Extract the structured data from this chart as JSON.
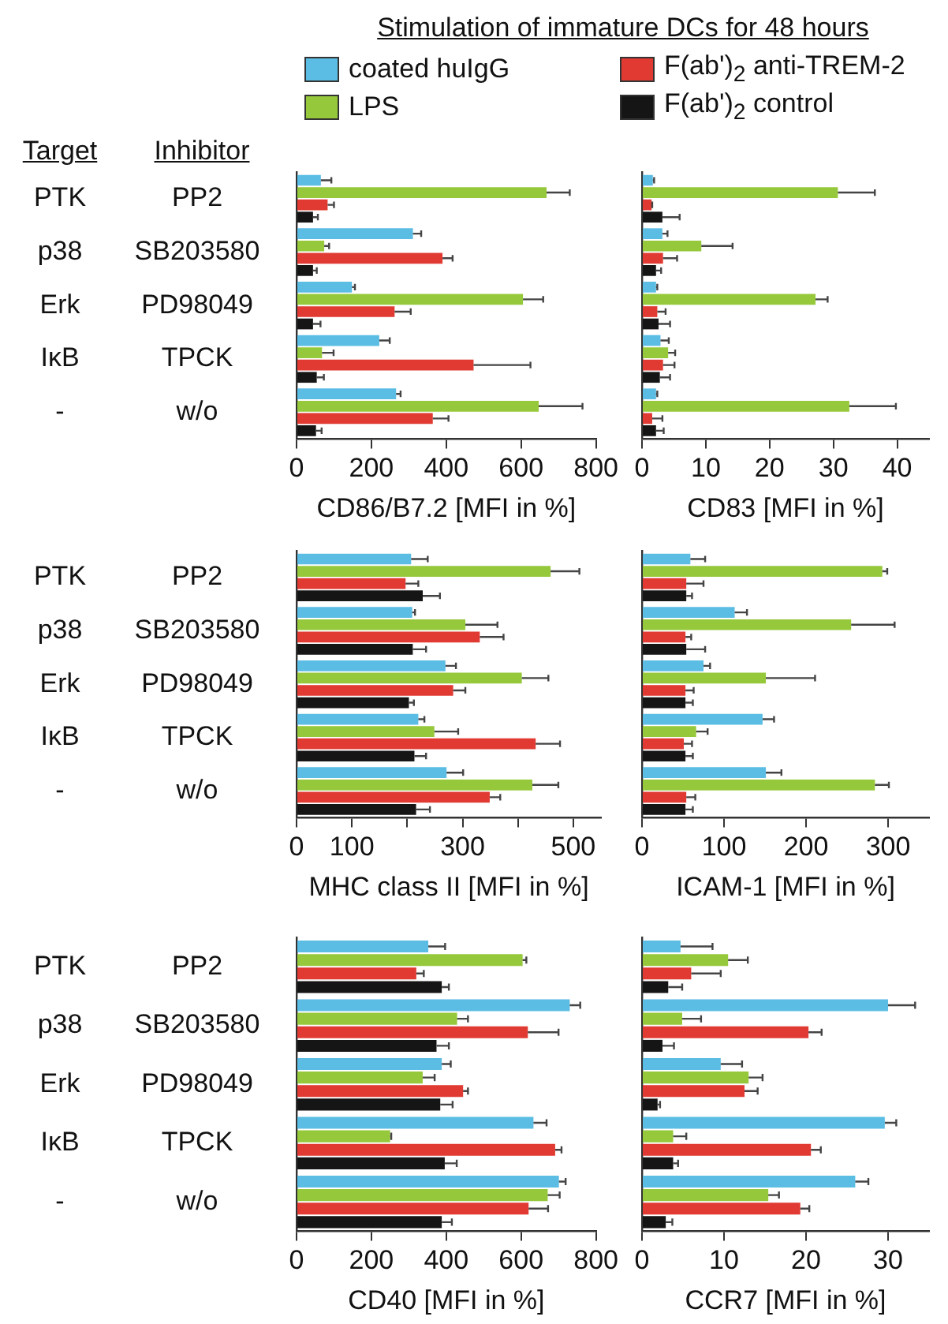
{
  "chart_data": [
    {
      "type": "bar",
      "orientation": "horizontal",
      "title": "Stimulation of immature DCs for 48 hours",
      "legend": "top",
      "annotations": [
        "Target",
        "Inhibitor"
      ],
      "categories": [
        "PP2",
        "SB203580",
        "PD98049",
        "TPCK",
        "w/o"
      ],
      "y2_categories": [
        "PTK",
        "p38",
        "Erk",
        "IκB",
        "-"
      ],
      "xlabel": "CD86/B7.2 [MFI in %]",
      "xlim": [
        0,
        800
      ],
      "xticks": [
        0,
        200,
        400,
        600,
        800
      ],
      "grid": false,
      "series": [
        {
          "name": "coated huIgG",
          "color": "#5bbde4",
          "values": [
            65,
            311,
            148,
            221,
            266
          ],
          "errors": [
            [
              65,
              93
            ],
            [
              311,
              333
            ],
            [
              148,
              156
            ],
            [
              221,
              249
            ],
            [
              266,
              278
            ]
          ]
        },
        {
          "name": "LPS",
          "color": "#95c83a",
          "values": [
            668,
            74,
            605,
            68,
            647
          ],
          "errors": [
            [
              668,
              730
            ],
            [
              74,
              87
            ],
            [
              605,
              659
            ],
            [
              68,
              99
            ],
            [
              647,
              764
            ]
          ]
        },
        {
          "name": "F(ab')$_{2}$ anti-TREM-2",
          "color": "#e03a32",
          "values": [
            83,
            390,
            262,
            473,
            364
          ],
          "errors": [
            [
              83,
              100
            ],
            [
              390,
              417
            ],
            [
              262,
              305
            ],
            [
              473,
              625
            ],
            [
              364,
              406
            ]
          ]
        },
        {
          "name": "F(ab')$_{2}$ control",
          "color": "#151515",
          "values": [
            44,
            44,
            44,
            54,
            52
          ],
          "errors": [
            [
              44,
              57
            ],
            [
              44,
              54
            ],
            [
              44,
              64
            ],
            [
              54,
              73
            ],
            [
              52,
              67
            ]
          ]
        }
      ]
    },
    {
      "type": "bar",
      "orientation": "horizontal",
      "categories": [
        null,
        null,
        null,
        null,
        null
      ],
      "xlabel": "CD83 [MFI in %]",
      "xlim": [
        0,
        45
      ],
      "xticks": [
        0,
        10,
        20,
        30,
        40
      ],
      "grid": false,
      "series": [
        {
          "color": "#5bbde4",
          "values": [
            1.7,
            3.2,
            2.2,
            2.9,
            2.2
          ],
          "errors": [
            [
              1.7,
              1.9
            ],
            [
              3.2,
              4.0
            ],
            [
              2.2,
              2.4
            ],
            [
              2.9,
              4.2
            ],
            [
              2.2,
              2.4
            ]
          ]
        },
        {
          "color": "#95c83a",
          "values": [
            30.7,
            9.3,
            27.2,
            4.1,
            32.5
          ],
          "errors": [
            [
              30.7,
              36.5
            ],
            [
              9.3,
              14.2
            ],
            [
              27.2,
              29.1
            ],
            [
              4.1,
              5.2
            ],
            [
              32.5,
              39.8
            ]
          ]
        },
        {
          "color": "#e03a32",
          "values": [
            1.5,
            3.3,
            2.4,
            3.3,
            1.6
          ],
          "errors": [
            [
              1.5,
              1.6
            ],
            [
              3.3,
              5.5
            ],
            [
              2.4,
              3.7
            ],
            [
              3.3,
              5.1
            ],
            [
              1.6,
              3.2
            ]
          ]
        },
        {
          "color": "#151515",
          "values": [
            3.2,
            2.2,
            2.6,
            2.8,
            2.2
          ],
          "errors": [
            [
              3.2,
              5.9
            ],
            [
              2.2,
              3.0
            ],
            [
              2.6,
              4.4
            ],
            [
              2.8,
              4.4
            ],
            [
              2.2,
              3.4
            ]
          ]
        }
      ]
    },
    {
      "type": "bar",
      "orientation": "horizontal",
      "categories": [
        "PP2",
        "SB203580",
        "PD98049",
        "TPCK",
        "w/o"
      ],
      "y2_categories": [
        "PTK",
        "p38",
        "Erk",
        "IκB",
        "-"
      ],
      "xlabel": "MHC class II [MFI in %]",
      "xlim": [
        0,
        550
      ],
      "xticks": [
        0,
        100,
        {
          "value": 200,
          "label": null
        },
        300,
        {
          "value": 400,
          "label": null
        },
        500
      ],
      "grid": false,
      "series": [
        {
          "color": "#5bbde4",
          "values": [
            207,
            209,
            269,
            220,
            271
          ],
          "errors": [
            [
              207,
              237
            ],
            [
              209,
              214
            ],
            [
              269,
              288
            ],
            [
              220,
              231
            ],
            [
              271,
              301
            ]
          ]
        },
        {
          "color": "#95c83a",
          "values": [
            459,
            305,
            407,
            249,
            426
          ],
          "errors": [
            [
              459,
              511
            ],
            [
              305,
              363
            ],
            [
              407,
              455
            ],
            [
              249,
              292
            ],
            [
              426,
              473
            ]
          ]
        },
        {
          "color": "#e03a32",
          "values": [
            197,
            331,
            283,
            432,
            349
          ],
          "errors": [
            [
              197,
              220
            ],
            [
              331,
              374
            ],
            [
              283,
              305
            ],
            [
              432,
              476
            ],
            [
              349,
              368
            ]
          ]
        },
        {
          "color": "#151515",
          "values": [
            228,
            210,
            203,
            213,
            216
          ],
          "errors": [
            [
              228,
              259
            ],
            [
              210,
              234
            ],
            [
              203,
              212
            ],
            [
              213,
              234
            ],
            [
              216,
              241
            ]
          ]
        }
      ]
    },
    {
      "type": "bar",
      "orientation": "horizontal",
      "categories": [
        null,
        null,
        null,
        null,
        null
      ],
      "xlabel": "ICAM-1 [MFI in %]",
      "xlim": [
        0,
        350
      ],
      "xticks": [
        0,
        100,
        200,
        300
      ],
      "grid": false,
      "series": [
        {
          "color": "#5bbde4",
          "values": [
            59,
            113,
            75,
            147,
            151
          ],
          "errors": [
            [
              59,
              77
            ],
            [
              113,
              128
            ],
            [
              75,
              83
            ],
            [
              147,
              161
            ],
            [
              151,
              170
            ]
          ]
        },
        {
          "color": "#95c83a",
          "values": [
            293,
            255,
            151,
            66,
            284
          ],
          "errors": [
            [
              293,
              299
            ],
            [
              255,
              308
            ],
            [
              151,
              211
            ],
            [
              66,
              80
            ],
            [
              284,
              301
            ]
          ]
        },
        {
          "color": "#e03a32",
          "values": [
            54,
            53,
            53,
            51,
            54
          ],
          "errors": [
            [
              54,
              75
            ],
            [
              53,
              60
            ],
            [
              53,
              63
            ],
            [
              51,
              61
            ],
            [
              54,
              65
            ]
          ]
        },
        {
          "color": "#151515",
          "values": [
            54,
            54,
            53,
            53,
            53
          ],
          "errors": [
            [
              54,
              61
            ],
            [
              54,
              77
            ],
            [
              53,
              62
            ],
            [
              53,
              62
            ],
            [
              53,
              62
            ]
          ]
        }
      ]
    },
    {
      "type": "bar",
      "orientation": "horizontal",
      "categories": [
        "PP2",
        "SB203580",
        "PD98049",
        "TPCK",
        "w/o"
      ],
      "y2_categories": [
        "PTK",
        "p38",
        "Erk",
        "IκB",
        "-"
      ],
      "xlabel": "CD40 [MFI in %]",
      "xlim": [
        0,
        800
      ],
      "xticks": [
        0,
        200,
        400,
        600,
        800
      ],
      "grid": false,
      "series": [
        {
          "color": "#5bbde4",
          "values": [
            352,
            730,
            388,
            633,
            701
          ],
          "errors": [
            [
              352,
              397
            ],
            [
              730,
              758
            ],
            [
              388,
              412
            ],
            [
              633,
              668
            ],
            [
              701,
              719
            ]
          ]
        },
        {
          "color": "#95c83a",
          "values": [
            604,
            429,
            337,
            250,
            671
          ],
          "errors": [
            [
              604,
              614
            ],
            [
              429,
              458
            ],
            [
              337,
              369
            ],
            [
              250,
              253
            ],
            [
              671,
              703
            ]
          ]
        },
        {
          "color": "#e03a32",
          "values": [
            320,
            618,
            445,
            691,
            620
          ],
          "errors": [
            [
              320,
              340
            ],
            [
              618,
              700
            ],
            [
              445,
              458
            ],
            [
              691,
              708
            ],
            [
              620,
              672
            ]
          ]
        },
        {
          "color": "#151515",
          "values": [
            388,
            374,
            384,
            396,
            388
          ],
          "errors": [
            [
              388,
              407
            ],
            [
              374,
              407
            ],
            [
              384,
              417
            ],
            [
              396,
              428
            ],
            [
              388,
              415
            ]
          ]
        }
      ]
    },
    {
      "type": "bar",
      "orientation": "horizontal",
      "categories": [
        null,
        null,
        null,
        null,
        null
      ],
      "xlabel": "CCR7 [MFI in %]",
      "xlim": [
        0,
        35
      ],
      "xticks": [
        0,
        10,
        20,
        30
      ],
      "grid": false,
      "series": [
        {
          "color": "#5bbde4",
          "values": [
            4.7,
            30.0,
            9.6,
            29.6,
            26.0
          ],
          "errors": [
            [
              4.7,
              8.6
            ],
            [
              30.0,
              33.3
            ],
            [
              9.6,
              12.2
            ],
            [
              29.6,
              31.0
            ],
            [
              26.0,
              27.6
            ]
          ]
        },
        {
          "color": "#95c83a",
          "values": [
            10.5,
            4.9,
            13.0,
            3.8,
            15.4
          ],
          "errors": [
            [
              10.5,
              12.9
            ],
            [
              4.9,
              7.2
            ],
            [
              13.0,
              14.7
            ],
            [
              3.8,
              5.4
            ],
            [
              15.4,
              16.7
            ]
          ]
        },
        {
          "color": "#e03a32",
          "values": [
            6.0,
            20.3,
            12.5,
            20.6,
            19.3
          ],
          "errors": [
            [
              6.0,
              9.6
            ],
            [
              20.3,
              21.9
            ],
            [
              12.5,
              14.1
            ],
            [
              20.6,
              21.8
            ],
            [
              19.3,
              20.4
            ]
          ]
        },
        {
          "color": "#151515",
          "values": [
            3.2,
            2.5,
            1.9,
            3.8,
            2.9
          ],
          "errors": [
            [
              3.2,
              4.9
            ],
            [
              2.5,
              3.9
            ],
            [
              1.9,
              2.2
            ],
            [
              3.8,
              4.4
            ],
            [
              2.9,
              3.7
            ]
          ]
        }
      ]
    }
  ]
}
